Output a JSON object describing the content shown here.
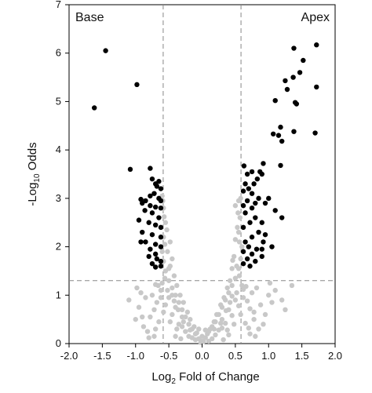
{
  "chart_data": {
    "type": "scatter",
    "xlabel": {
      "prefix": "Log",
      "sub": "2",
      "suffix": " Fold of Change"
    },
    "ylabel": {
      "prefix": "-Log",
      "sub": "10",
      "suffix": " Odds"
    },
    "xlim": [
      -2.0,
      2.0
    ],
    "ylim": [
      0,
      7
    ],
    "x_ticks": [
      "-2.0",
      "-1.5",
      "-1.0",
      "-0.5",
      "0.0",
      "0.5",
      "1.0",
      "1.5",
      "2.0"
    ],
    "y_ticks": [
      "0",
      "1",
      "2",
      "3",
      "4",
      "5",
      "6",
      "7"
    ],
    "annotations": {
      "left": "Base",
      "right": "Apex"
    },
    "thresholds": {
      "x": [
        -0.585,
        0.585
      ],
      "y": 1.3
    },
    "colors": {
      "significant": "#000000",
      "not_significant": "#c8c8c8",
      "threshold_line": "#888888"
    },
    "significant_points": [
      [
        -1.45,
        6.05
      ],
      [
        -1.62,
        4.87
      ],
      [
        -0.98,
        5.35
      ],
      [
        -1.08,
        3.6
      ],
      [
        -0.78,
        3.62
      ],
      [
        -0.75,
        3.4
      ],
      [
        -0.7,
        3.3
      ],
      [
        -0.68,
        3.25
      ],
      [
        -0.65,
        3.35
      ],
      [
        -0.62,
        3.2
      ],
      [
        -0.78,
        3.05
      ],
      [
        -0.72,
        3.1
      ],
      [
        -0.65,
        3.0
      ],
      [
        -0.92,
        2.98
      ],
      [
        -0.85,
        2.95
      ],
      [
        -0.62,
        2.95
      ],
      [
        -0.9,
        2.9
      ],
      [
        -0.78,
        2.85
      ],
      [
        -0.7,
        2.82
      ],
      [
        -0.62,
        2.8
      ],
      [
        -0.86,
        2.75
      ],
      [
        -0.75,
        2.7
      ],
      [
        -0.65,
        2.6
      ],
      [
        -0.95,
        2.55
      ],
      [
        -0.8,
        2.5
      ],
      [
        -0.7,
        2.45
      ],
      [
        -0.62,
        2.4
      ],
      [
        -0.9,
        2.3
      ],
      [
        -0.75,
        2.25
      ],
      [
        -0.62,
        2.2
      ],
      [
        -0.85,
        2.1
      ],
      [
        -0.7,
        2.05
      ],
      [
        -0.62,
        2.0
      ],
      [
        -0.92,
        2.1
      ],
      [
        -0.78,
        1.95
      ],
      [
        -0.7,
        1.85
      ],
      [
        -0.8,
        1.8
      ],
      [
        -0.68,
        1.75
      ],
      [
        -0.62,
        1.7
      ],
      [
        -0.75,
        1.65
      ],
      [
        -0.62,
        1.6
      ],
      [
        -0.7,
        1.58
      ],
      [
        1.72,
        6.17
      ],
      [
        1.38,
        6.1
      ],
      [
        1.52,
        5.85
      ],
      [
        1.47,
        5.6
      ],
      [
        1.25,
        5.43
      ],
      [
        1.37,
        5.5
      ],
      [
        1.72,
        5.3
      ],
      [
        1.28,
        5.25
      ],
      [
        1.4,
        4.98
      ],
      [
        1.42,
        4.95
      ],
      [
        1.1,
        5.02
      ],
      [
        1.18,
        4.47
      ],
      [
        1.07,
        4.33
      ],
      [
        1.38,
        4.38
      ],
      [
        1.15,
        4.3
      ],
      [
        1.2,
        4.18
      ],
      [
        1.7,
        4.35
      ],
      [
        0.92,
        3.72
      ],
      [
        0.63,
        3.67
      ],
      [
        0.75,
        3.55
      ],
      [
        0.87,
        3.55
      ],
      [
        0.9,
        3.5
      ],
      [
        0.68,
        3.5
      ],
      [
        1.18,
        3.68
      ],
      [
        0.83,
        3.4
      ],
      [
        0.65,
        3.3
      ],
      [
        0.78,
        3.3
      ],
      [
        0.7,
        3.2
      ],
      [
        0.62,
        3.15
      ],
      [
        0.75,
        3.1
      ],
      [
        0.85,
        3.0
      ],
      [
        0.68,
        2.95
      ],
      [
        0.8,
        2.9
      ],
      [
        0.95,
        2.9
      ],
      [
        0.62,
        2.85
      ],
      [
        0.75,
        2.8
      ],
      [
        1.0,
        3.0
      ],
      [
        1.1,
        2.75
      ],
      [
        0.65,
        2.7
      ],
      [
        0.8,
        2.6
      ],
      [
        0.9,
        2.5
      ],
      [
        1.2,
        2.6
      ],
      [
        0.72,
        2.5
      ],
      [
        0.62,
        2.4
      ],
      [
        0.85,
        2.3
      ],
      [
        0.75,
        2.2
      ],
      [
        0.92,
        2.1
      ],
      [
        0.65,
        2.1
      ],
      [
        0.7,
        2.0
      ],
      [
        0.82,
        1.95
      ],
      [
        0.62,
        1.9
      ],
      [
        0.75,
        1.85
      ],
      [
        0.9,
        1.8
      ],
      [
        0.68,
        1.75
      ],
      [
        0.8,
        1.7
      ],
      [
        0.62,
        1.65
      ],
      [
        0.72,
        1.6
      ],
      [
        1.05,
        2.0
      ],
      [
        0.95,
        2.25
      ],
      [
        0.9,
        1.95
      ]
    ],
    "nonsignificant_points": [
      [
        -0.05,
        0.1
      ],
      [
        0.05,
        0.12
      ],
      [
        0.0,
        0.05
      ],
      [
        -0.1,
        0.2
      ],
      [
        0.1,
        0.25
      ],
      [
        -0.15,
        0.3
      ],
      [
        0.15,
        0.35
      ],
      [
        -0.2,
        0.4
      ],
      [
        0.2,
        0.45
      ],
      [
        -0.25,
        0.55
      ],
      [
        0.25,
        0.6
      ],
      [
        -0.3,
        0.7
      ],
      [
        0.3,
        0.75
      ],
      [
        -0.35,
        0.85
      ],
      [
        0.35,
        0.9
      ],
      [
        -0.4,
        1.0
      ],
      [
        0.4,
        1.05
      ],
      [
        -0.45,
        1.15
      ],
      [
        0.45,
        1.2
      ],
      [
        -0.5,
        1.3
      ],
      [
        0.5,
        1.35
      ],
      [
        -0.55,
        1.5
      ],
      [
        0.55,
        1.55
      ],
      [
        -0.58,
        1.7
      ],
      [
        0.58,
        1.75
      ],
      [
        -0.6,
        1.9
      ],
      [
        0.6,
        2.0
      ],
      [
        -0.58,
        2.2
      ],
      [
        0.55,
        2.3
      ],
      [
        -0.55,
        2.5
      ],
      [
        0.57,
        2.6
      ],
      [
        -0.58,
        2.8
      ],
      [
        0.5,
        2.85
      ],
      [
        -0.6,
        3.05
      ],
      [
        0.58,
        3.0
      ],
      [
        -0.52,
        1.9
      ],
      [
        0.48,
        1.8
      ],
      [
        -0.48,
        1.6
      ],
      [
        0.45,
        1.55
      ],
      [
        -0.42,
        1.4
      ],
      [
        0.42,
        1.3
      ],
      [
        -0.38,
        1.2
      ],
      [
        0.38,
        1.15
      ],
      [
        -0.33,
        1.0
      ],
      [
        0.33,
        0.95
      ],
      [
        -0.28,
        0.85
      ],
      [
        0.28,
        0.8
      ],
      [
        -0.22,
        0.65
      ],
      [
        0.22,
        0.6
      ],
      [
        -0.18,
        0.5
      ],
      [
        0.18,
        0.45
      ],
      [
        -0.12,
        0.35
      ],
      [
        0.12,
        0.3
      ],
      [
        -0.08,
        0.22
      ],
      [
        0.08,
        0.2
      ],
      [
        -0.02,
        0.02
      ],
      [
        0.02,
        0.04
      ],
      [
        -0.3,
        0.55
      ],
      [
        0.3,
        0.5
      ],
      [
        -0.4,
        0.75
      ],
      [
        0.4,
        0.7
      ],
      [
        -0.5,
        0.95
      ],
      [
        0.5,
        0.9
      ],
      [
        -0.35,
        0.4
      ],
      [
        0.35,
        0.42
      ],
      [
        -0.45,
        0.6
      ],
      [
        0.45,
        0.58
      ],
      [
        -0.55,
        0.8
      ],
      [
        0.55,
        0.78
      ],
      [
        -0.25,
        0.25
      ],
      [
        0.25,
        0.28
      ],
      [
        -0.2,
        0.15
      ],
      [
        0.2,
        0.18
      ],
      [
        -0.15,
        0.12
      ],
      [
        0.15,
        0.1
      ],
      [
        -0.38,
        0.3
      ],
      [
        0.38,
        0.28
      ],
      [
        -0.48,
        0.45
      ],
      [
        0.48,
        0.4
      ],
      [
        -0.58,
        0.65
      ],
      [
        0.58,
        0.6
      ],
      [
        -0.52,
        1.1
      ],
      [
        0.52,
        1.05
      ],
      [
        -0.45,
        1.0
      ],
      [
        0.45,
        0.98
      ],
      [
        -0.42,
        0.88
      ],
      [
        0.42,
        0.85
      ],
      [
        -0.36,
        0.7
      ],
      [
        0.36,
        0.68
      ],
      [
        -0.3,
        0.35
      ],
      [
        0.3,
        0.32
      ],
      [
        -0.6,
        1.25
      ],
      [
        0.6,
        1.2
      ],
      [
        -0.56,
        1.35
      ],
      [
        0.56,
        1.4
      ],
      [
        -0.5,
        1.55
      ],
      [
        0.52,
        1.6
      ],
      [
        -0.45,
        1.75
      ],
      [
        0.46,
        1.72
      ],
      [
        -0.56,
        2.05
      ],
      [
        0.56,
        2.1
      ],
      [
        -0.53,
        2.35
      ],
      [
        0.53,
        2.4
      ],
      [
        -0.57,
        2.62
      ],
      [
        0.54,
        2.7
      ],
      [
        -0.59,
        2.95
      ],
      [
        0.55,
        2.95
      ],
      [
        -0.48,
        2.1
      ],
      [
        0.5,
        2.15
      ],
      [
        -0.62,
        0.95
      ],
      [
        0.62,
        0.95
      ],
      [
        -0.68,
        0.85
      ],
      [
        0.68,
        0.88
      ],
      [
        -0.72,
        0.7
      ],
      [
        0.72,
        0.72
      ],
      [
        -0.78,
        0.55
      ],
      [
        0.78,
        0.5
      ],
      [
        -0.65,
        0.45
      ],
      [
        0.65,
        0.42
      ],
      [
        -0.7,
        0.3
      ],
      [
        0.7,
        0.32
      ],
      [
        -0.62,
        1.1
      ],
      [
        0.62,
        1.12
      ],
      [
        -0.66,
        1.2
      ],
      [
        0.66,
        1.18
      ],
      [
        -0.75,
        1.0
      ],
      [
        0.75,
        1.05
      ],
      [
        -1.1,
        0.9
      ],
      [
        -0.95,
        0.75
      ],
      [
        -0.85,
        0.95
      ],
      [
        -0.9,
        0.55
      ],
      [
        -1.0,
        0.5
      ],
      [
        -0.88,
        0.35
      ],
      [
        -0.82,
        0.25
      ],
      [
        -0.92,
        1.05
      ],
      [
        -0.98,
        1.15
      ],
      [
        -0.7,
        1.22
      ],
      [
        0.88,
        0.8
      ],
      [
        0.95,
        0.6
      ],
      [
        1.05,
        0.85
      ],
      [
        0.92,
        0.4
      ],
      [
        0.85,
        0.3
      ],
      [
        1.0,
        1.0
      ],
      [
        1.1,
        1.1
      ],
      [
        1.2,
        0.9
      ],
      [
        1.25,
        0.7
      ],
      [
        1.35,
        1.2
      ],
      [
        1.02,
        1.25
      ],
      [
        0.82,
        1.15
      ],
      [
        0.78,
        0.65
      ],
      [
        0.72,
        0.2
      ],
      [
        -0.72,
        0.15
      ],
      [
        -0.8,
        0.12
      ],
      [
        0.8,
        0.15
      ],
      [
        -0.4,
        0.15
      ],
      [
        0.4,
        0.18
      ],
      [
        -0.32,
        0.1
      ],
      [
        0.32,
        0.08
      ],
      [
        -0.1,
        0.08
      ],
      [
        0.1,
        0.05
      ],
      [
        -0.18,
        0.28
      ],
      [
        0.18,
        0.3
      ],
      [
        -0.28,
        0.45
      ],
      [
        0.28,
        0.42
      ],
      [
        -0.05,
        0.3
      ],
      [
        0.05,
        0.28
      ],
      [
        0.0,
        0.15
      ]
    ]
  }
}
